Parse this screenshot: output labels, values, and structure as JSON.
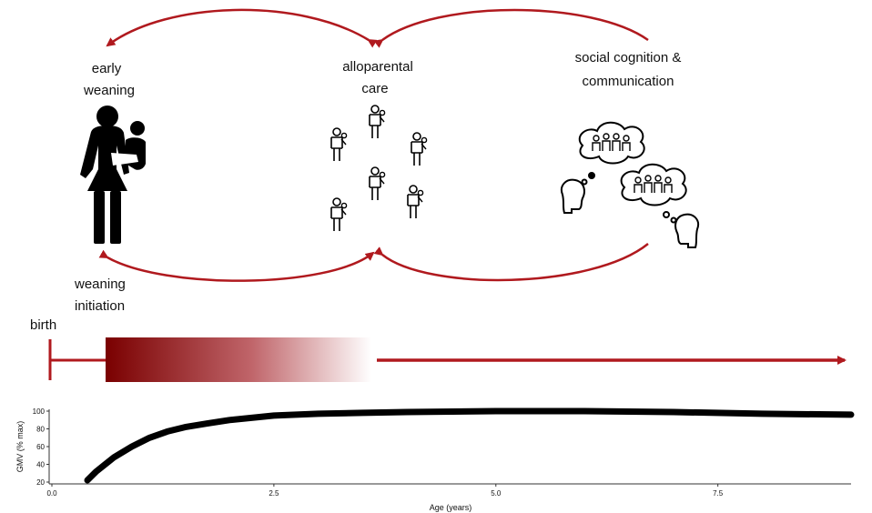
{
  "labels": {
    "early_weaning_line1": "early",
    "early_weaning_line2": "weaning",
    "alloparental_line1": "alloparental",
    "alloparental_line2": "care",
    "social_line1": "social cognition &",
    "social_line2": "communication",
    "weaning_initiation_line1": "weaning",
    "weaning_initiation_line2": "initiation",
    "birth": "birth"
  },
  "colors": {
    "accent": "#b0191e",
    "gradient_start": "#7a0000",
    "ink": "#000000"
  },
  "icons": {
    "mother": "mother-carrying-child-icon",
    "alloparents": "caregiver-figure-icon",
    "social": "thinking-heads-icon"
  },
  "chart_data": {
    "type": "line",
    "title": "",
    "xlabel": "Age (years)",
    "ylabel": "GMV (% max)",
    "xlim": [
      0,
      9
    ],
    "ylim": [
      20,
      100
    ],
    "xticks": [
      "0.0",
      "2.5",
      "5.0",
      "7.5"
    ],
    "xtick_values": [
      0,
      2.5,
      5,
      7.5
    ],
    "yticks": [
      "20",
      "40",
      "60",
      "80",
      "100"
    ],
    "ytick_values": [
      20,
      40,
      60,
      80,
      100
    ],
    "grid": false,
    "series": [
      {
        "x": [
          0.4,
          0.5,
          0.7,
          0.9,
          1.1,
          1.3,
          1.5,
          1.75,
          2.0,
          2.5,
          3.0,
          3.5,
          4.0,
          5.0,
          6.0,
          7.0,
          8.0,
          9.0
        ],
        "y": [
          22,
          32,
          48,
          60,
          70,
          77,
          82,
          86,
          90,
          95,
          97,
          98,
          99,
          100,
          100,
          99,
          97,
          96
        ]
      }
    ]
  }
}
